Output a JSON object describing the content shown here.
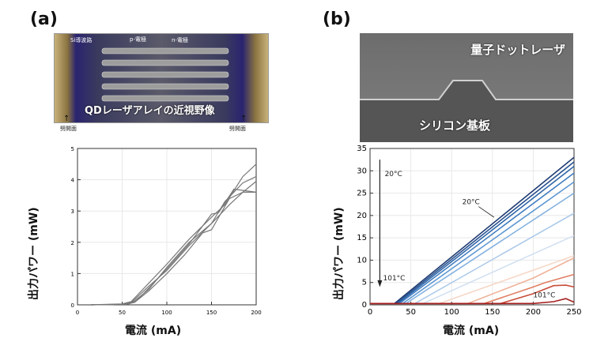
{
  "panels": {
    "a": {
      "label": "(a)",
      "photo": {
        "annotations": [
          "Si導波路",
          "p-電極",
          "n-電極"
        ],
        "caption": "QDレーザアレイの近視野像",
        "facet_left": "劈開面",
        "facet_right": "劈開面"
      }
    },
    "b": {
      "label": "(b)",
      "sem": {
        "top_text": "量子ドットレーザ",
        "bottom_text": "シリコン基板"
      }
    }
  },
  "chart_data": [
    {
      "type": "line",
      "xlabel": "電流 (mA)",
      "ylabel": "出力パワー (mW)",
      "xlim": [
        0,
        200
      ],
      "ylim": [
        0,
        5
      ],
      "xticks": [
        0,
        50,
        100,
        150,
        200
      ],
      "yticks": [
        0,
        1,
        2,
        3,
        4,
        5
      ],
      "grid": true,
      "series": [
        {
          "values": [
            [
              15,
              0
            ],
            [
              50,
              0.03
            ],
            [
              60,
              0.1
            ],
            [
              80,
              0.7
            ],
            [
              100,
              1.3
            ],
            [
              125,
              2.1
            ],
            [
              150,
              2.8
            ],
            [
              165,
              3.2
            ],
            [
              185,
              4.1
            ],
            [
              200,
              4.5
            ]
          ]
        },
        {
          "values": [
            [
              15,
              0
            ],
            [
              52,
              0.02
            ],
            [
              62,
              0.12
            ],
            [
              80,
              0.6
            ],
            [
              100,
              1.1
            ],
            [
              125,
              1.9
            ],
            [
              150,
              2.6
            ],
            [
              165,
              3.3
            ],
            [
              185,
              3.9
            ],
            [
              200,
              4.1
            ]
          ]
        },
        {
          "values": [
            [
              15,
              0
            ],
            [
              55,
              0.02
            ],
            [
              63,
              0.1
            ],
            [
              80,
              0.5
            ],
            [
              100,
              1.2
            ],
            [
              125,
              2.0
            ],
            [
              150,
              2.6
            ],
            [
              170,
              3.2
            ],
            [
              185,
              3.6
            ],
            [
              200,
              3.6
            ]
          ]
        },
        {
          "values": [
            [
              15,
              0
            ],
            [
              55,
              0.02
            ],
            [
              64,
              0.08
            ],
            [
              80,
              0.45
            ],
            [
              100,
              1.0
            ],
            [
              120,
              1.6
            ],
            [
              140,
              2.3
            ],
            [
              150,
              2.4
            ],
            [
              170,
              3.4
            ],
            [
              185,
              3.6
            ],
            [
              200,
              3.95
            ]
          ]
        },
        {
          "values": [
            [
              15,
              0
            ],
            [
              56,
              0.02
            ],
            [
              65,
              0.1
            ],
            [
              82,
              0.6
            ],
            [
              100,
              1.15
            ],
            [
              125,
              1.95
            ],
            [
              150,
              2.9
            ],
            [
              158,
              2.95
            ],
            [
              175,
              3.7
            ],
            [
              200,
              3.6
            ]
          ]
        }
      ]
    },
    {
      "type": "line",
      "xlabel": "電流 (mA)",
      "ylabel": "出力パワー (mW)",
      "xlim": [
        0,
        250
      ],
      "ylim": [
        0,
        35
      ],
      "xticks": [
        0,
        50,
        100,
        150,
        200,
        250
      ],
      "yticks": [
        0,
        5,
        10,
        15,
        20,
        25,
        30,
        35
      ],
      "grid": true,
      "annotations": [
        "20°C",
        "20°C",
        "101°C",
        "101°C"
      ],
      "series": [
        {
          "color": "#1f3b73",
          "values": [
            [
              0,
              0.3
            ],
            [
              30,
              0.3
            ],
            [
              250,
              33
            ]
          ]
        },
        {
          "color": "#27508f",
          "values": [
            [
              0,
              0.3
            ],
            [
              32,
              0.3
            ],
            [
              250,
              32
            ]
          ]
        },
        {
          "color": "#2f66a8",
          "values": [
            [
              0,
              0.3
            ],
            [
              34,
              0.3
            ],
            [
              250,
              31
            ]
          ]
        },
        {
          "color": "#3f7cc0",
          "values": [
            [
              0,
              0.3
            ],
            [
              36,
              0.3
            ],
            [
              250,
              29.5
            ]
          ]
        },
        {
          "color": "#5d97d2",
          "values": [
            [
              0,
              0.3
            ],
            [
              40,
              0.3
            ],
            [
              250,
              27.5
            ]
          ]
        },
        {
          "color": "#86b3e0",
          "values": [
            [
              0,
              0.3
            ],
            [
              44,
              0.3
            ],
            [
              250,
              25
            ]
          ]
        },
        {
          "color": "#aecbea",
          "values": [
            [
              0,
              0.3
            ],
            [
              55,
              0.3
            ],
            [
              250,
              20.5
            ]
          ]
        },
        {
          "color": "#d2e0f1",
          "values": [
            [
              0,
              0.3
            ],
            [
              65,
              0.3
            ],
            [
              250,
              15.5
            ]
          ]
        },
        {
          "color": "#f6d8c8",
          "values": [
            [
              0,
              0.3
            ],
            [
              85,
              0.3
            ],
            [
              250,
              11
            ]
          ]
        },
        {
          "color": "#efb29a",
          "values": [
            [
              0,
              0.3
            ],
            [
              120,
              0.3
            ],
            [
              200,
              6
            ],
            [
              250,
              10.5
            ]
          ]
        },
        {
          "color": "#e07f63",
          "values": [
            [
              0,
              0.3
            ],
            [
              140,
              0.3
            ],
            [
              200,
              4
            ],
            [
              215,
              5
            ],
            [
              250,
              6.8
            ]
          ]
        },
        {
          "color": "#c84d3a",
          "values": [
            [
              0,
              0.3
            ],
            [
              160,
              0.3
            ],
            [
              200,
              2.5
            ],
            [
              225,
              4.3
            ],
            [
              240,
              4.4
            ],
            [
              250,
              4
            ]
          ]
        },
        {
          "color": "#a51f1f",
          "values": [
            [
              0,
              0.3
            ],
            [
              200,
              0.3
            ],
            [
              225,
              0.7
            ],
            [
              240,
              1.4
            ],
            [
              250,
              0.6
            ]
          ]
        }
      ]
    }
  ]
}
